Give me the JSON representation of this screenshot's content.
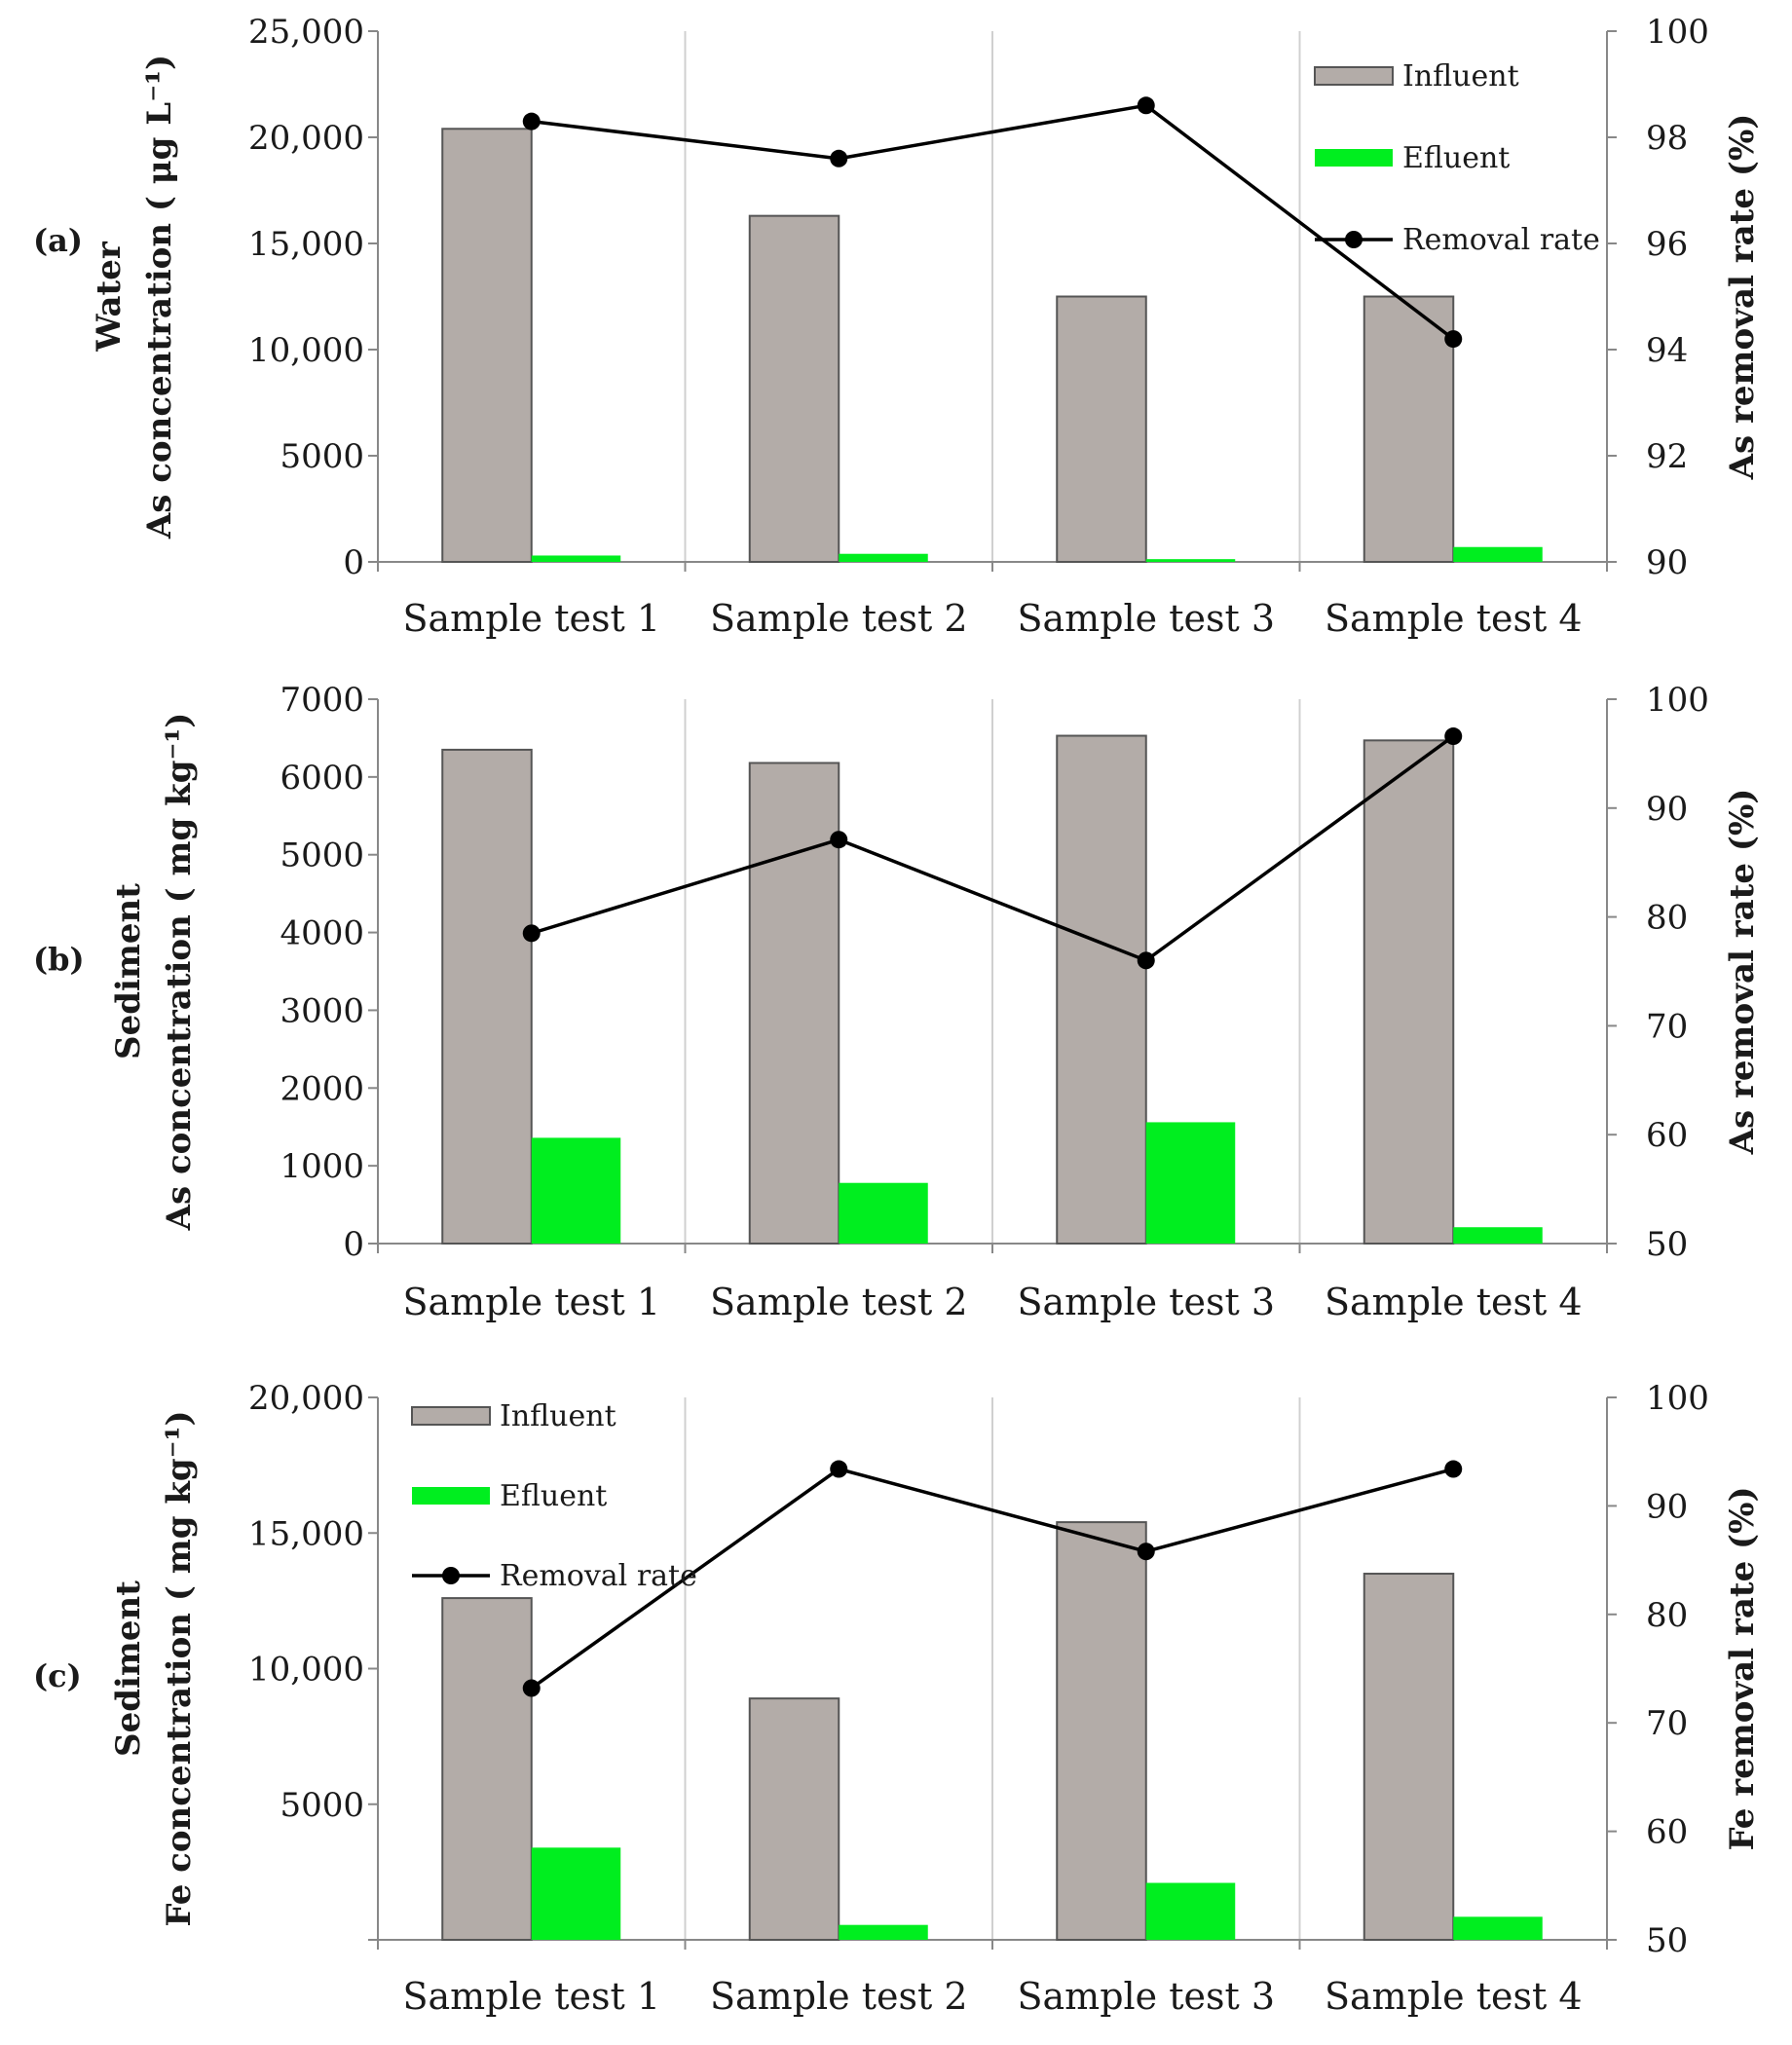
{
  "chart_data": [
    {
      "type": "bar",
      "panel_label": "(a)",
      "title": "",
      "ylabel_line1": "Water",
      "ylabel_line2": "As concentration ( μg L⁻¹)",
      "y2label": "As removal rate (%)",
      "categories": [
        "Sample test 1",
        "Sample test 2",
        "Sample test 3",
        "Sample test 4"
      ],
      "ylim": [
        0,
        25000
      ],
      "yticks": [
        "0",
        "5000",
        "10,000",
        "15,000",
        "20,000",
        "25,000"
      ],
      "y2lim": [
        90,
        100
      ],
      "y2ticks": [
        "90",
        "92",
        "94",
        "96",
        "98",
        "100"
      ],
      "series": [
        {
          "name": "Influent",
          "kind": "bar",
          "color": "#b3aca8",
          "values": [
            20400,
            16300,
            12500,
            12500
          ]
        },
        {
          "name": "Efluent",
          "kind": "bar",
          "color": "#00ee1f",
          "values": [
            300,
            380,
            130,
            700
          ]
        },
        {
          "name": "Removal rate",
          "kind": "line",
          "axis": "right",
          "color": "#000000",
          "values": [
            98.3,
            97.6,
            98.6,
            94.2
          ]
        }
      ],
      "legend": "top-right"
    },
    {
      "type": "bar",
      "panel_label": "(b)",
      "title": "",
      "ylabel_line1": "Sediment",
      "ylabel_line2": "As concentration ( mg kg⁻¹)",
      "y2label": "As removal rate (%)",
      "categories": [
        "Sample test 1",
        "Sample test 2",
        "Sample test 3",
        "Sample test 4"
      ],
      "ylim": [
        0,
        7000
      ],
      "yticks": [
        "0",
        "1000",
        "2000",
        "3000",
        "4000",
        "5000",
        "6000",
        "7000"
      ],
      "y2lim": [
        50,
        100
      ],
      "y2ticks": [
        "50",
        "60",
        "70",
        "80",
        "90",
        "100"
      ],
      "series": [
        {
          "name": "Influent",
          "kind": "bar",
          "color": "#b3aca8",
          "values": [
            6350,
            6180,
            6530,
            6470
          ]
        },
        {
          "name": "Efluent",
          "kind": "bar",
          "color": "#00ee1f",
          "values": [
            1360,
            780,
            1560,
            210
          ]
        },
        {
          "name": "Removal rate",
          "kind": "line",
          "axis": "right",
          "color": "#000000",
          "values": [
            78.5,
            87.1,
            76.0,
            96.6
          ]
        }
      ],
      "legend": "none"
    },
    {
      "type": "bar",
      "panel_label": "(c)",
      "title": "",
      "ylabel_line1": "Sediment",
      "ylabel_line2": "Fe concentration ( mg kg⁻¹)",
      "y2label": "Fe removal rate (%)",
      "categories": [
        "Sample test 1",
        "Sample test 2",
        "Sample test 3",
        "Sample test 4"
      ],
      "ylim": [
        0,
        20000
      ],
      "yticks": [
        "",
        "5000",
        "10,000",
        "15,000",
        "20,000"
      ],
      "y2lim": [
        50,
        100
      ],
      "y2ticks": [
        "50",
        "60",
        "70",
        "80",
        "90",
        "100"
      ],
      "series": [
        {
          "name": "Influent",
          "kind": "bar",
          "color": "#b3aca8",
          "values": [
            12600,
            8900,
            15400,
            13500
          ]
        },
        {
          "name": "Efluent",
          "kind": "bar",
          "color": "#00ee1f",
          "values": [
            3400,
            550,
            2100,
            850
          ]
        },
        {
          "name": "Removal rate",
          "kind": "line",
          "axis": "right",
          "color": "#000000",
          "values": [
            73.2,
            93.4,
            85.8,
            93.4
          ]
        }
      ],
      "legend": "top-left"
    }
  ]
}
